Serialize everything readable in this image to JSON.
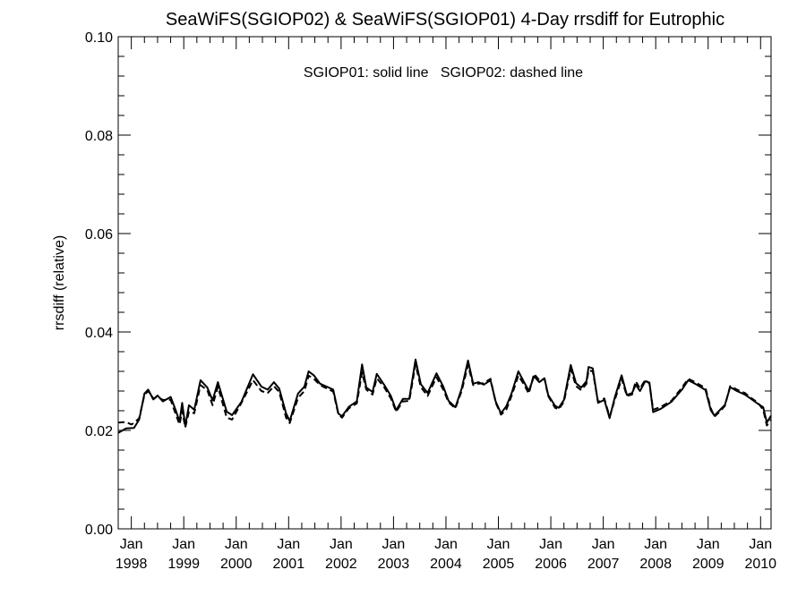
{
  "chart_data": {
    "type": "line",
    "title": "SeaWiFS(SGIOP02) & SeaWiFS(SGIOP01) 4-Day rrsdiff for Eutrophic",
    "annotation": "SGIOP01: solid line   SGIOP02: dashed line",
    "ylabel": "rrsdiff (relative)",
    "xlabel": "",
    "ylim": [
      0.0,
      0.1
    ],
    "xlim": [
      1997.75,
      2010.2
    ],
    "y_ticks": [
      "0.00",
      "0.02",
      "0.04",
      "0.06",
      "0.08",
      "0.10"
    ],
    "x_ticks": [
      {
        "month": "Jan",
        "year": "1998"
      },
      {
        "month": "Jan",
        "year": "1999"
      },
      {
        "month": "Jan",
        "year": "2000"
      },
      {
        "month": "Jan",
        "year": "2001"
      },
      {
        "month": "Jan",
        "year": "2002"
      },
      {
        "month": "Jan",
        "year": "2003"
      },
      {
        "month": "Jan",
        "year": "2004"
      },
      {
        "month": "Jan",
        "year": "2005"
      },
      {
        "month": "Jan",
        "year": "2006"
      },
      {
        "month": "Jan",
        "year": "2007"
      },
      {
        "month": "Jan",
        "year": "2008"
      },
      {
        "month": "Jan",
        "year": "2009"
      },
      {
        "month": "Jan",
        "year": "2010"
      }
    ],
    "series": [
      {
        "style": "solid",
        "points": [
          [
            1997.75,
            0.0195
          ],
          [
            1997.9,
            0.0204
          ],
          [
            1998.05,
            0.0205
          ],
          [
            1998.15,
            0.0222
          ],
          [
            1998.25,
            0.0275
          ],
          [
            1998.32,
            0.0283
          ],
          [
            1998.42,
            0.0263
          ],
          [
            1998.5,
            0.0271
          ],
          [
            1998.6,
            0.0259
          ],
          [
            1998.75,
            0.0268
          ],
          [
            1998.85,
            0.024
          ],
          [
            1998.92,
            0.0218
          ],
          [
            1998.97,
            0.0256
          ],
          [
            1999.03,
            0.0209
          ],
          [
            1999.1,
            0.0251
          ],
          [
            1999.2,
            0.0242
          ],
          [
            1999.32,
            0.0302
          ],
          [
            1999.45,
            0.0287
          ],
          [
            1999.55,
            0.0261
          ],
          [
            1999.65,
            0.0298
          ],
          [
            1999.82,
            0.0238
          ],
          [
            1999.92,
            0.0231
          ],
          [
            2000.1,
            0.0258
          ],
          [
            2000.32,
            0.0314
          ],
          [
            2000.48,
            0.0289
          ],
          [
            2000.6,
            0.0283
          ],
          [
            2000.72,
            0.0298
          ],
          [
            2000.82,
            0.0285
          ],
          [
            2000.95,
            0.0235
          ],
          [
            2001.02,
            0.0219
          ],
          [
            2001.18,
            0.0275
          ],
          [
            2001.3,
            0.0289
          ],
          [
            2001.38,
            0.032
          ],
          [
            2001.48,
            0.0312
          ],
          [
            2001.6,
            0.0295
          ],
          [
            2001.85,
            0.0283
          ],
          [
            2001.95,
            0.0234
          ],
          [
            2002.02,
            0.0229
          ],
          [
            2002.15,
            0.0248
          ],
          [
            2002.3,
            0.0259
          ],
          [
            2002.4,
            0.0334
          ],
          [
            2002.48,
            0.0287
          ],
          [
            2002.6,
            0.0278
          ],
          [
            2002.68,
            0.0315
          ],
          [
            2002.82,
            0.0293
          ],
          [
            2002.95,
            0.027
          ],
          [
            2003.05,
            0.0241
          ],
          [
            2003.18,
            0.0264
          ],
          [
            2003.3,
            0.0264
          ],
          [
            2003.42,
            0.0344
          ],
          [
            2003.52,
            0.0294
          ],
          [
            2003.65,
            0.0276
          ],
          [
            2003.82,
            0.0316
          ],
          [
            2003.95,
            0.0289
          ],
          [
            2004.05,
            0.026
          ],
          [
            2004.18,
            0.0247
          ],
          [
            2004.3,
            0.0285
          ],
          [
            2004.42,
            0.0342
          ],
          [
            2004.52,
            0.0295
          ],
          [
            2004.62,
            0.0298
          ],
          [
            2004.72,
            0.0293
          ],
          [
            2004.85,
            0.0302
          ],
          [
            2004.95,
            0.0258
          ],
          [
            2005.05,
            0.0235
          ],
          [
            2005.15,
            0.0249
          ],
          [
            2005.25,
            0.0275
          ],
          [
            2005.38,
            0.032
          ],
          [
            2005.48,
            0.03
          ],
          [
            2005.58,
            0.028
          ],
          [
            2005.68,
            0.031
          ],
          [
            2005.78,
            0.0298
          ],
          [
            2005.88,
            0.0306
          ],
          [
            2005.95,
            0.0272
          ],
          [
            2006.08,
            0.025
          ],
          [
            2006.15,
            0.0246
          ],
          [
            2006.25,
            0.0262
          ],
          [
            2006.38,
            0.0333
          ],
          [
            2006.48,
            0.0296
          ],
          [
            2006.58,
            0.0287
          ],
          [
            2006.68,
            0.03
          ],
          [
            2006.72,
            0.0329
          ],
          [
            2006.8,
            0.0326
          ],
          [
            2006.9,
            0.0256
          ],
          [
            2007.02,
            0.0262
          ],
          [
            2007.12,
            0.0225
          ],
          [
            2007.22,
            0.0267
          ],
          [
            2007.35,
            0.0312
          ],
          [
            2007.45,
            0.0272
          ],
          [
            2007.55,
            0.0276
          ],
          [
            2007.62,
            0.0293
          ],
          [
            2007.7,
            0.028
          ],
          [
            2007.8,
            0.03
          ],
          [
            2007.88,
            0.0297
          ],
          [
            2007.95,
            0.0237
          ],
          [
            2008.1,
            0.0244
          ],
          [
            2008.3,
            0.0258
          ],
          [
            2008.5,
            0.0283
          ],
          [
            2008.62,
            0.0302
          ],
          [
            2008.75,
            0.0295
          ],
          [
            2008.95,
            0.0282
          ],
          [
            2009.05,
            0.0241
          ],
          [
            2009.12,
            0.023
          ],
          [
            2009.22,
            0.0241
          ],
          [
            2009.32,
            0.0252
          ],
          [
            2009.42,
            0.0288
          ],
          [
            2009.55,
            0.028
          ],
          [
            2009.7,
            0.0273
          ],
          [
            2009.82,
            0.0264
          ],
          [
            2009.95,
            0.0254
          ],
          [
            2010.05,
            0.0247
          ],
          [
            2010.12,
            0.0216
          ],
          [
            2010.2,
            0.023
          ]
        ]
      },
      {
        "style": "dashed",
        "points": [
          [
            1997.75,
            0.0216
          ],
          [
            1997.9,
            0.0217
          ],
          [
            1998.0,
            0.0212
          ],
          [
            1998.05,
            0.0215
          ],
          [
            1998.15,
            0.0225
          ],
          [
            1998.25,
            0.0272
          ],
          [
            1998.32,
            0.028
          ],
          [
            1998.42,
            0.0265
          ],
          [
            1998.5,
            0.0268
          ],
          [
            1998.6,
            0.0262
          ],
          [
            1998.75,
            0.0262
          ],
          [
            1998.85,
            0.0232
          ],
          [
            1998.92,
            0.0212
          ],
          [
            1998.97,
            0.024
          ],
          [
            1999.03,
            0.0206
          ],
          [
            1999.1,
            0.0238
          ],
          [
            1999.2,
            0.0235
          ],
          [
            1999.32,
            0.0292
          ],
          [
            1999.45,
            0.0282
          ],
          [
            1999.55,
            0.0251
          ],
          [
            1999.65,
            0.0289
          ],
          [
            1999.82,
            0.0226
          ],
          [
            1999.92,
            0.0222
          ],
          [
            2000.1,
            0.0256
          ],
          [
            2000.32,
            0.0302
          ],
          [
            2000.48,
            0.028
          ],
          [
            2000.6,
            0.0276
          ],
          [
            2000.72,
            0.029
          ],
          [
            2000.82,
            0.0278
          ],
          [
            2000.95,
            0.0226
          ],
          [
            2001.02,
            0.0215
          ],
          [
            2001.18,
            0.0266
          ],
          [
            2001.3,
            0.028
          ],
          [
            2001.38,
            0.0311
          ],
          [
            2001.48,
            0.0305
          ],
          [
            2001.6,
            0.0292
          ],
          [
            2001.85,
            0.0279
          ],
          [
            2001.95,
            0.0232
          ],
          [
            2002.02,
            0.0226
          ],
          [
            2002.15,
            0.0245
          ],
          [
            2002.3,
            0.0255
          ],
          [
            2002.4,
            0.0318
          ],
          [
            2002.48,
            0.0283
          ],
          [
            2002.6,
            0.0273
          ],
          [
            2002.68,
            0.0306
          ],
          [
            2002.82,
            0.0288
          ],
          [
            2002.95,
            0.0265
          ],
          [
            2003.05,
            0.0238
          ],
          [
            2003.18,
            0.0259
          ],
          [
            2003.3,
            0.026
          ],
          [
            2003.42,
            0.0334
          ],
          [
            2003.52,
            0.0288
          ],
          [
            2003.65,
            0.027
          ],
          [
            2003.82,
            0.0308
          ],
          [
            2003.95,
            0.0283
          ],
          [
            2004.05,
            0.0257
          ],
          [
            2004.18,
            0.0245
          ],
          [
            2004.3,
            0.028
          ],
          [
            2004.42,
            0.0333
          ],
          [
            2004.52,
            0.0292
          ],
          [
            2004.62,
            0.0295
          ],
          [
            2004.72,
            0.0296
          ],
          [
            2004.85,
            0.0305
          ],
          [
            2004.95,
            0.0256
          ],
          [
            2005.05,
            0.0232
          ],
          [
            2005.15,
            0.0242
          ],
          [
            2005.25,
            0.027
          ],
          [
            2005.38,
            0.0311
          ],
          [
            2005.48,
            0.0295
          ],
          [
            2005.58,
            0.0275
          ],
          [
            2005.68,
            0.0315
          ],
          [
            2005.78,
            0.0302
          ],
          [
            2005.88,
            0.0305
          ],
          [
            2005.95,
            0.027
          ],
          [
            2006.08,
            0.0246
          ],
          [
            2006.15,
            0.0243
          ],
          [
            2006.25,
            0.0258
          ],
          [
            2006.38,
            0.0325
          ],
          [
            2006.48,
            0.029
          ],
          [
            2006.58,
            0.0282
          ],
          [
            2006.68,
            0.0295
          ],
          [
            2006.72,
            0.0322
          ],
          [
            2006.8,
            0.032
          ],
          [
            2006.9,
            0.0258
          ],
          [
            2007.02,
            0.0265
          ],
          [
            2007.12,
            0.0228
          ],
          [
            2007.22,
            0.0262
          ],
          [
            2007.35,
            0.0305
          ],
          [
            2007.45,
            0.027
          ],
          [
            2007.55,
            0.0273
          ],
          [
            2007.62,
            0.03
          ],
          [
            2007.7,
            0.0285
          ],
          [
            2007.8,
            0.0303
          ],
          [
            2007.88,
            0.0295
          ],
          [
            2007.95,
            0.0242
          ],
          [
            2008.1,
            0.0248
          ],
          [
            2008.3,
            0.026
          ],
          [
            2008.5,
            0.0287
          ],
          [
            2008.62,
            0.0305
          ],
          [
            2008.75,
            0.0298
          ],
          [
            2008.95,
            0.0286
          ],
          [
            2009.05,
            0.0245
          ],
          [
            2009.12,
            0.0228
          ],
          [
            2009.22,
            0.0238
          ],
          [
            2009.32,
            0.025
          ],
          [
            2009.42,
            0.029
          ],
          [
            2009.55,
            0.0283
          ],
          [
            2009.7,
            0.0276
          ],
          [
            2009.82,
            0.0266
          ],
          [
            2009.95,
            0.0256
          ],
          [
            2010.05,
            0.0242
          ],
          [
            2010.12,
            0.021
          ],
          [
            2010.2,
            0.0222
          ]
        ]
      }
    ],
    "colors": {
      "line": "#000000",
      "background": "#ffffff"
    }
  }
}
